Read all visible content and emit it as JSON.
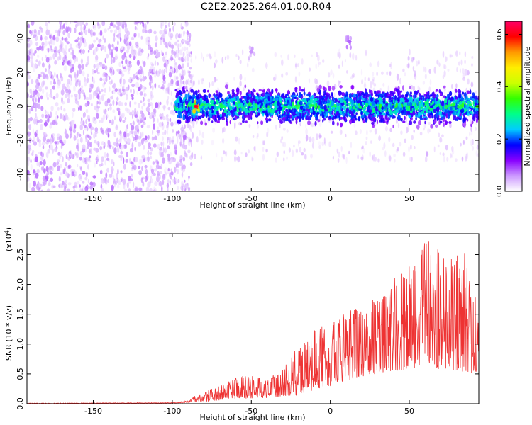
{
  "title": "C2E2.2025.264.01.00.R04",
  "chart_data": [
    {
      "type": "heatmap",
      "name": "spectrogram",
      "xlabel": "Height of straight line (km)",
      "ylabel": "Frequency (Hz)",
      "xlim": [
        -192,
        94
      ],
      "ylim": [
        -50,
        50
      ],
      "xticks": [
        -150,
        -100,
        -50,
        0,
        50
      ],
      "yticks": [
        -40,
        -20,
        0,
        20,
        40
      ],
      "colorbar": {
        "label": "Normalized spectral amplitude",
        "range": [
          0.0,
          0.65
        ],
        "ticks": [
          "0.0",
          "0.2",
          "0.4",
          "0.6"
        ],
        "tick_values": [
          0.0,
          0.2,
          0.4,
          0.6
        ],
        "colors": [
          "#ffffff",
          "#cc99ff",
          "#8800ff",
          "#0000ff",
          "#00ccff",
          "#00ff88",
          "#33ff00",
          "#ccff00",
          "#ffee00",
          "#ff9900",
          "#ff0000",
          "#ff0066"
        ]
      },
      "regions": [
        {
          "x": [
            -192,
            -100
          ],
          "f_min": -50,
          "f_max": 50,
          "level": 0.06,
          "description": "broadband noise"
        },
        {
          "x": [
            -100,
            94
          ],
          "f_center": 0,
          "f_halfwidth": 10,
          "level": 0.22,
          "description": "signal band near 0 Hz"
        }
      ],
      "peaks": [
        {
          "x": -85,
          "f": 0,
          "value": 0.62
        },
        {
          "x": 12,
          "f": 38,
          "value": 0.08
        },
        {
          "x": -50,
          "f": 32,
          "value": 0.06
        }
      ]
    },
    {
      "type": "line",
      "name": "snr",
      "xlabel": "Height of straight line (km)",
      "ylabel": "SNR (10 * v/v)",
      "scale_label": "(x10",
      "scale_exp": "4",
      "scale_close": ")",
      "xlim": [
        -192,
        94
      ],
      "ylim": [
        0,
        2.85
      ],
      "xticks": [
        -150,
        -100,
        -50,
        0,
        50
      ],
      "yticks": [
        "0.0",
        "0.5",
        "1.0",
        "1.5",
        "2.0",
        "2.5"
      ],
      "ytick_values": [
        0.0,
        0.5,
        1.0,
        1.5,
        2.0,
        2.5
      ],
      "color": "#ee3333",
      "envelope": {
        "x": [
          -192,
          -100,
          -90,
          -85,
          -70,
          -60,
          -50,
          -40,
          -30,
          -20,
          -10,
          0,
          10,
          20,
          30,
          40,
          50,
          55,
          60,
          70,
          80,
          85,
          90,
          94
        ],
        "y": [
          0.01,
          0.02,
          0.05,
          0.15,
          0.3,
          0.45,
          0.5,
          0.4,
          0.6,
          1.0,
          1.25,
          1.35,
          1.55,
          1.65,
          1.8,
          2.1,
          2.3,
          2.5,
          2.85,
          2.55,
          2.5,
          2.62,
          2.0,
          1.55
        ]
      },
      "base": {
        "x": [
          -192,
          -100,
          -80,
          -60,
          -40,
          -20,
          0,
          20,
          40,
          60,
          80,
          94
        ],
        "y": [
          0.0,
          0.01,
          0.03,
          0.08,
          0.1,
          0.15,
          0.3,
          0.45,
          0.55,
          0.6,
          0.55,
          0.5
        ]
      }
    }
  ]
}
